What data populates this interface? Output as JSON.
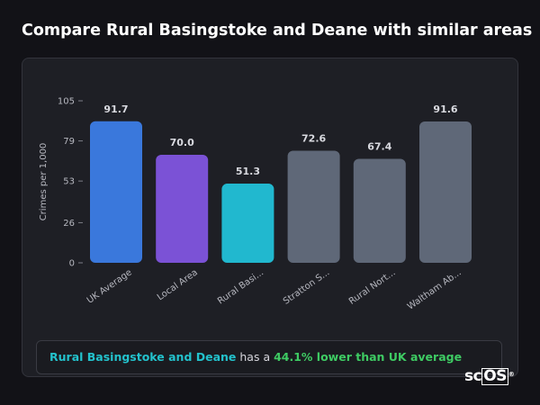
{
  "page": {
    "title": "Compare Rural Basingstoke and Deane with similar areas"
  },
  "chart_data": {
    "type": "bar",
    "ylabel": "Crimes per 1,000",
    "xlabel": "",
    "ylim": [
      0,
      105
    ],
    "yticks": [
      0,
      26,
      53,
      79,
      105
    ],
    "grid": false,
    "categories": [
      "UK Average",
      "Local Area",
      "Rural Basi...",
      "Stratton S...",
      "Rural Nort...",
      "Waltham Ab..."
    ],
    "values": [
      91.7,
      70.0,
      51.3,
      72.6,
      67.4,
      91.6
    ],
    "value_labels": [
      "91.7",
      "70.0",
      "51.3",
      "72.6",
      "67.4",
      "91.6"
    ],
    "colors": [
      "#3a78dc",
      "#7b52d6",
      "#21b8cf",
      "#5f6878",
      "#5f6878",
      "#5f6878"
    ]
  },
  "callout": {
    "area": "Rural Basingstoke and Deane",
    "middle": " has a ",
    "stat": "44.1% lower than UK average"
  },
  "logo": {
    "prefix": "sc",
    "boxed": "OS",
    "mark": "®"
  }
}
